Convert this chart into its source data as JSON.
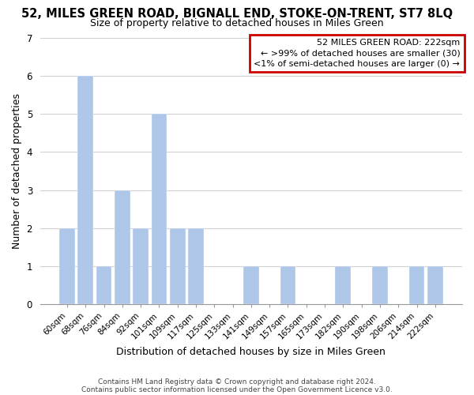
{
  "title_line1": "52, MILES GREEN ROAD, BIGNALL END, STOKE-ON-TRENT, ST7 8LQ",
  "title_line2": "Size of property relative to detached houses in Miles Green",
  "xlabel": "Distribution of detached houses by size in Miles Green",
  "ylabel": "Number of detached properties",
  "bar_labels": [
    "60sqm",
    "68sqm",
    "76sqm",
    "84sqm",
    "92sqm",
    "101sqm",
    "109sqm",
    "117sqm",
    "125sqm",
    "133sqm",
    "141sqm",
    "149sqm",
    "157sqm",
    "165sqm",
    "173sqm",
    "182sqm",
    "190sqm",
    "198sqm",
    "206sqm",
    "214sqm",
    "222sqm"
  ],
  "bar_values": [
    2,
    6,
    1,
    3,
    2,
    5,
    2,
    2,
    0,
    0,
    1,
    0,
    1,
    0,
    0,
    1,
    0,
    1,
    0,
    1,
    1
  ],
  "bar_color": "#aec6e8",
  "ylim": [
    0,
    7
  ],
  "yticks": [
    0,
    1,
    2,
    3,
    4,
    5,
    6,
    7
  ],
  "legend_title": "52 MILES GREEN ROAD: 222sqm",
  "legend_line1": "← >99% of detached houses are smaller (30)",
  "legend_line2": "<1% of semi-detached houses are larger (0) →",
  "legend_box_color": "#ffffff",
  "legend_box_edge_color": "#cc0000",
  "footer_line1": "Contains HM Land Registry data © Crown copyright and database right 2024.",
  "footer_line2": "Contains public sector information licensed under the Open Government Licence v3.0.",
  "grid_color": "#d0d0d0",
  "background_color": "#ffffff",
  "title1_fontsize": 10.5,
  "title2_fontsize": 9,
  "axis_label_fontsize": 9,
  "tick_fontsize": 7.5,
  "legend_fontsize": 8,
  "footer_fontsize": 6.5
}
